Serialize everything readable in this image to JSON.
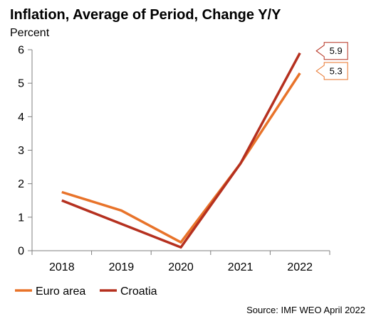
{
  "chart_data": {
    "type": "line",
    "title": "Inflation, Average of Period, Change Y/Y",
    "ylabel": "Percent",
    "xlabel": "",
    "categories": [
      "2018",
      "2019",
      "2020",
      "2021",
      "2022"
    ],
    "ylim": [
      0,
      6
    ],
    "yticks": [
      "0",
      "1",
      "2",
      "3",
      "4",
      "5",
      "6"
    ],
    "series": [
      {
        "name": "Euro area",
        "color": "#E8732A",
        "values": [
          1.75,
          1.2,
          0.25,
          2.6,
          5.3
        ],
        "end_label": "5.3"
      },
      {
        "name": "Croatia",
        "color": "#B5301F",
        "values": [
          1.5,
          0.8,
          0.1,
          2.6,
          5.9
        ],
        "end_label": "5.9"
      }
    ],
    "grid": false,
    "legend_position": "bottom-left",
    "source": "Source: IMF WEO April 2022"
  }
}
